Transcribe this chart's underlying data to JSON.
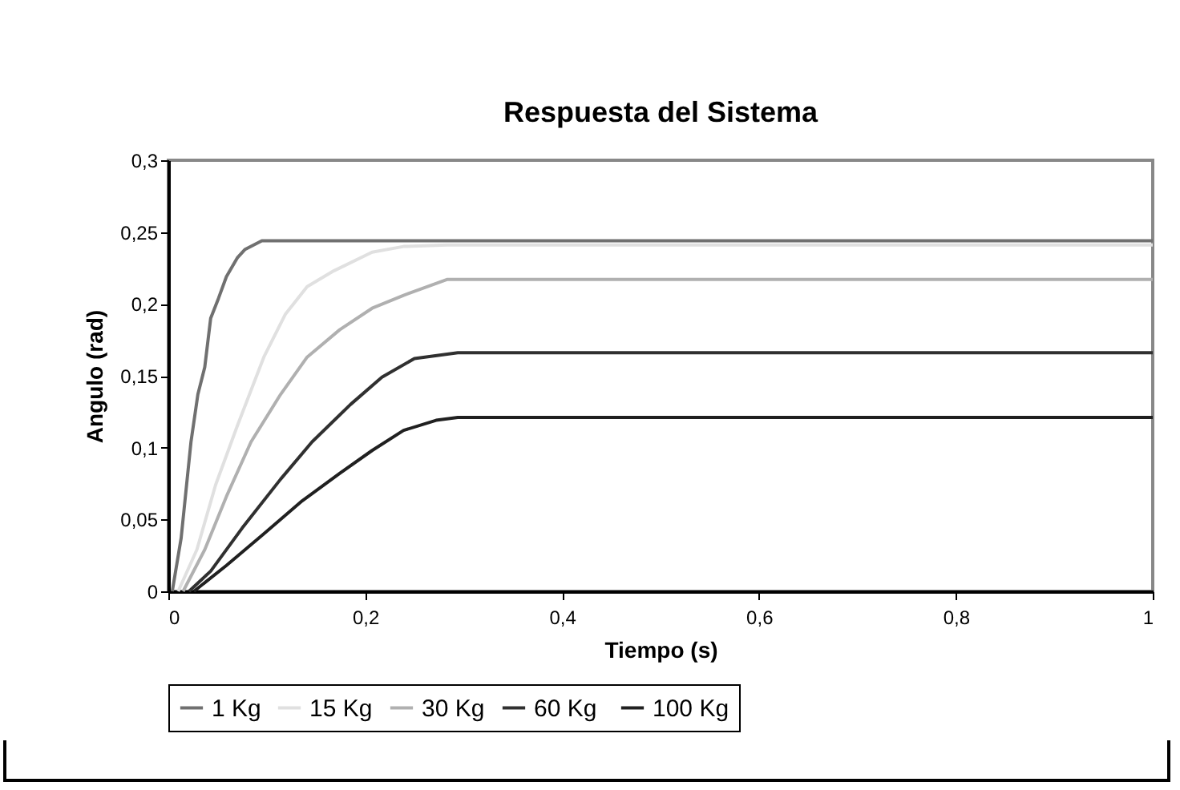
{
  "chart_data": {
    "type": "line",
    "title": "Respuesta del Sistema",
    "xlabel": "Tiempo (s)",
    "ylabel": "Angulo (rad)",
    "xlim": [
      0,
      1
    ],
    "ylim": [
      0,
      0.3
    ],
    "xticks": [
      0,
      {
        "value": 0.2,
        "label": "0,2"
      },
      {
        "value": 0.4,
        "label": "0,4"
      },
      {
        "value": 0.6,
        "label": "0,6"
      },
      {
        "value": 0.8,
        "label": "0,8"
      },
      1
    ],
    "yticks": [
      0,
      {
        "value": 0.05,
        "label": "0,05"
      },
      {
        "value": 0.1,
        "label": "0,1"
      },
      {
        "value": 0.15,
        "label": "0,15"
      },
      {
        "value": 0.2,
        "label": "0,2"
      },
      {
        "value": 0.25,
        "label": "0,25"
      },
      {
        "value": 0.3,
        "label": "0,3"
      }
    ],
    "grid": false,
    "legend": "bottom",
    "marker": "none",
    "line_style": "solid",
    "series": [
      {
        "name": "1 Kg",
        "color": "#707070",
        "x": [
          0.004,
          0.013,
          0.023,
          0.03,
          0.037,
          0.043,
          0.051,
          0.059,
          0.07,
          0.078,
          0.095,
          1
        ],
        "values": [
          0,
          0.037,
          0.104,
          0.137,
          0.156,
          0.19,
          0.204,
          0.219,
          0.232,
          0.238,
          0.244,
          0.244
        ]
      },
      {
        "name": "15 Kg",
        "color": "#e0e0e0",
        "x": [
          0.01,
          0.029,
          0.048,
          0.07,
          0.097,
          0.119,
          0.141,
          0.168,
          0.207,
          0.239,
          0.283,
          1
        ],
        "values": [
          0,
          0.029,
          0.074,
          0.115,
          0.163,
          0.193,
          0.212,
          0.223,
          0.236,
          0.24,
          0.241,
          0.241
        ]
      },
      {
        "name": "30 Kg",
        "color": "#b0b0b0",
        "x": [
          0.015,
          0.037,
          0.059,
          0.084,
          0.114,
          0.141,
          0.174,
          0.207,
          0.239,
          0.283,
          1
        ],
        "values": [
          0,
          0.029,
          0.066,
          0.104,
          0.137,
          0.163,
          0.182,
          0.197,
          0.206,
          0.217,
          0.217
        ]
      },
      {
        "name": "60  Kg",
        "color": "#303030",
        "x": [
          0.021,
          0.043,
          0.075,
          0.114,
          0.146,
          0.185,
          0.217,
          0.25,
          0.294,
          1
        ],
        "values": [
          0,
          0.014,
          0.044,
          0.078,
          0.104,
          0.13,
          0.149,
          0.162,
          0.166,
          0.166
        ]
      },
      {
        "name": "100 Kg",
        "color": "#202020",
        "x": [
          0.026,
          0.059,
          0.097,
          0.136,
          0.174,
          0.207,
          0.239,
          0.272,
          0.294,
          1
        ],
        "values": [
          0,
          0.018,
          0.04,
          0.063,
          0.082,
          0.098,
          0.112,
          0.119,
          0.121,
          0.121
        ]
      }
    ]
  }
}
